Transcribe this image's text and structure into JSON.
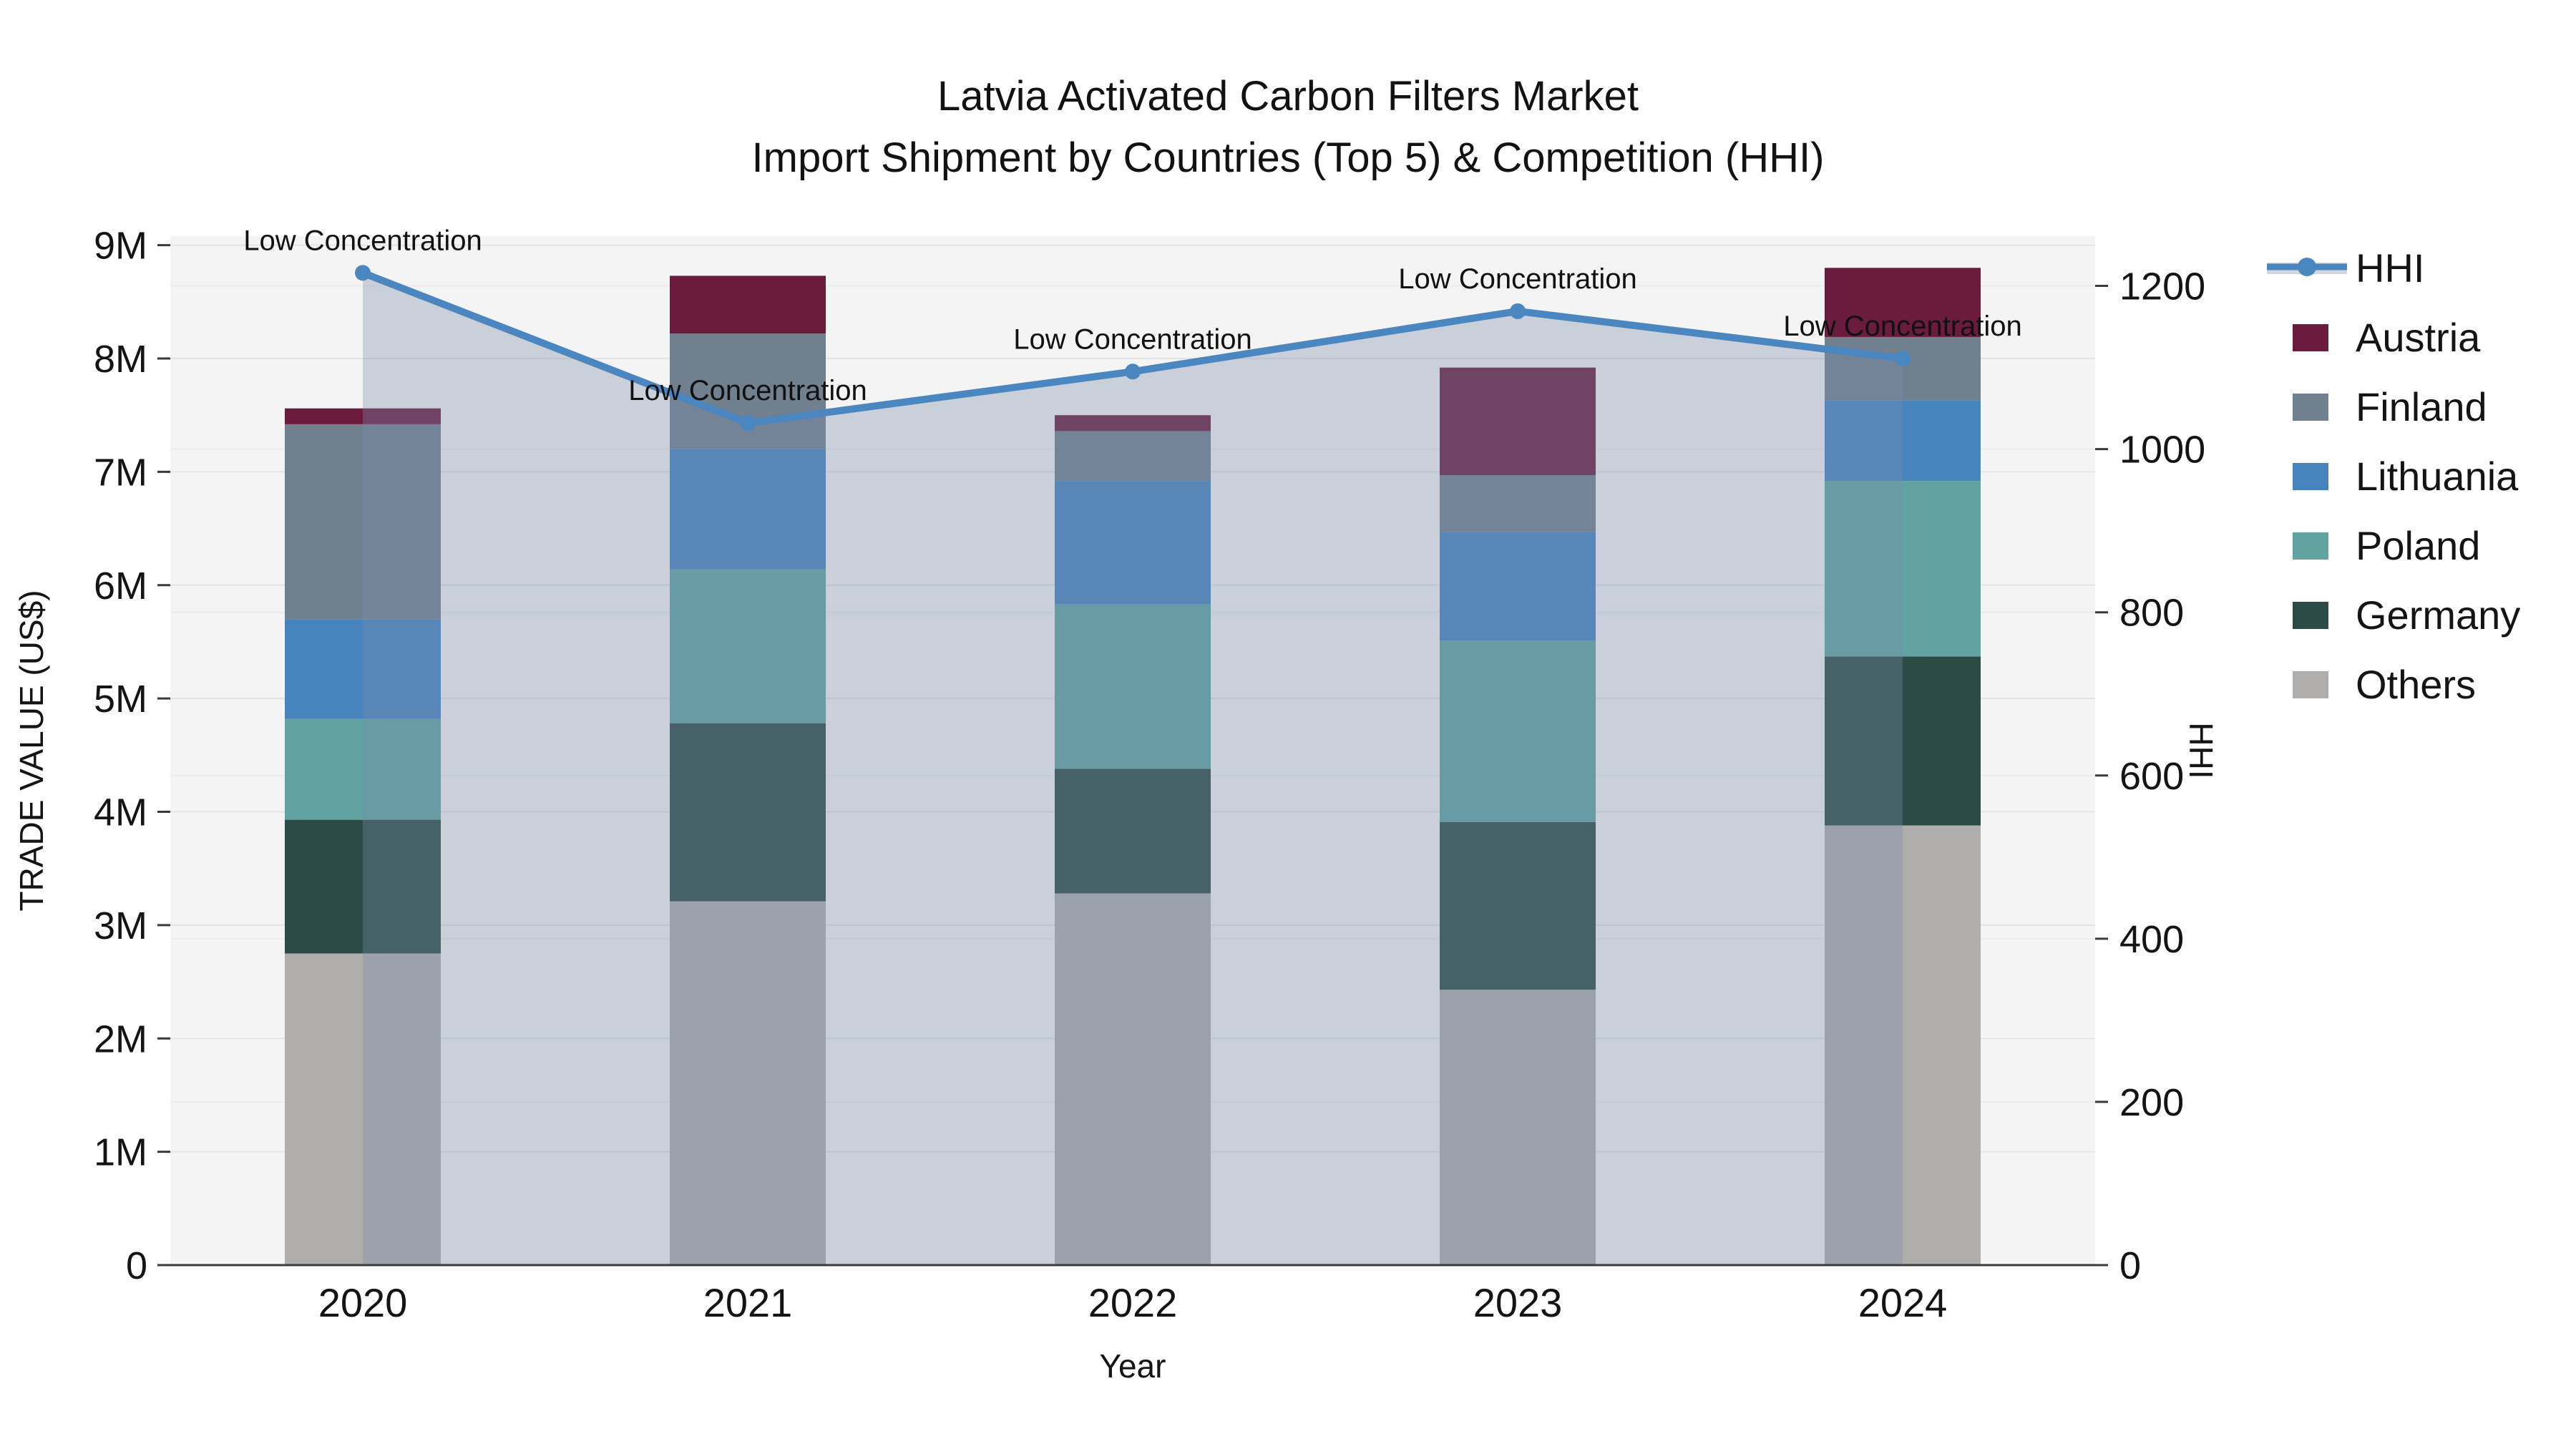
{
  "title": {
    "line1": "Latvia Activated Carbon Filters Market",
    "line2": "Import Shipment by Countries (Top 5) & Competition (HHI)"
  },
  "chart_data": {
    "type": "combo-stacked-bar-line",
    "categories": [
      "2020",
      "2021",
      "2022",
      "2023",
      "2024"
    ],
    "bar_value_unit": "US$ millions",
    "stack_order_bottom_to_top": [
      "Others",
      "Germany",
      "Poland",
      "Lithuania",
      "Finland",
      "Austria"
    ],
    "series": [
      {
        "name": "Austria",
        "color": "#6b1c3e",
        "values": [
          0.14,
          0.51,
          0.14,
          0.95,
          0.61
        ]
      },
      {
        "name": "Finland",
        "color": "#71808f",
        "values": [
          1.72,
          1.02,
          0.44,
          0.5,
          0.56
        ]
      },
      {
        "name": "Lithuania",
        "color": "#4783bd",
        "values": [
          0.88,
          1.06,
          1.09,
          0.96,
          0.71
        ]
      },
      {
        "name": "Poland",
        "color": "#60a3a1",
        "values": [
          0.89,
          1.36,
          1.45,
          1.6,
          1.55
        ]
      },
      {
        "name": "Germany",
        "color": "#2d4b46",
        "values": [
          1.18,
          1.57,
          1.1,
          1.48,
          1.49
        ]
      },
      {
        "name": "Others",
        "color": "#b0aeac",
        "values": [
          2.75,
          3.21,
          3.28,
          2.43,
          3.88
        ]
      }
    ],
    "bar_totals": [
      7.56,
      8.73,
      7.5,
      7.92,
      8.8
    ],
    "line_series": {
      "name": "HHI",
      "color": "#4a86c0",
      "area_fill": "rgba(120,140,170,0.35)",
      "values": [
        1216,
        1032,
        1095,
        1169,
        1111
      ],
      "point_labels": [
        "Low Concentration",
        "Low Concentration",
        "Low Concentration",
        "Low Concentration",
        "Low Concentration"
      ]
    },
    "left_axis": {
      "title": "TRADE VALUE (US$)",
      "range_millions": [
        0,
        9.08
      ],
      "ticks": [
        {
          "value": 0,
          "label": "0"
        },
        {
          "value": 1,
          "label": "1M"
        },
        {
          "value": 2,
          "label": "2M"
        },
        {
          "value": 3,
          "label": "3M"
        },
        {
          "value": 4,
          "label": "4M"
        },
        {
          "value": 5,
          "label": "5M"
        },
        {
          "value": 6,
          "label": "6M"
        },
        {
          "value": 7,
          "label": "7M"
        },
        {
          "value": 8,
          "label": "8M"
        },
        {
          "value": 9,
          "label": "9M"
        }
      ]
    },
    "right_axis": {
      "title": "HHI",
      "range": [
        0,
        1261
      ],
      "ticks": [
        {
          "value": 0,
          "label": "0"
        },
        {
          "value": 200,
          "label": "200"
        },
        {
          "value": 400,
          "label": "400"
        },
        {
          "value": 600,
          "label": "600"
        },
        {
          "value": 800,
          "label": "800"
        },
        {
          "value": 1000,
          "label": "1000"
        },
        {
          "value": 1200,
          "label": "1200"
        }
      ]
    },
    "x_axis": {
      "title": "Year"
    },
    "legend": {
      "position": "right",
      "items": [
        {
          "label": "HHI",
          "type": "line"
        },
        {
          "label": "Austria",
          "type": "swatch",
          "color": "#6b1c3e"
        },
        {
          "label": "Finland",
          "type": "swatch",
          "color": "#71808f"
        },
        {
          "label": "Lithuania",
          "type": "swatch",
          "color": "#4783bd"
        },
        {
          "label": "Poland",
          "type": "swatch",
          "color": "#60a3a1"
        },
        {
          "label": "Germany",
          "type": "swatch",
          "color": "#2d4b46"
        },
        {
          "label": "Others",
          "type": "swatch",
          "color": "#b0aeac"
        }
      ]
    },
    "style": {
      "plot_background": "#f4f4f4",
      "grid_color_left": "#e4e4e4",
      "grid_color_right": "#ececec",
      "axis_line_color": "#3a3a3a",
      "text_color": "#141414"
    }
  }
}
